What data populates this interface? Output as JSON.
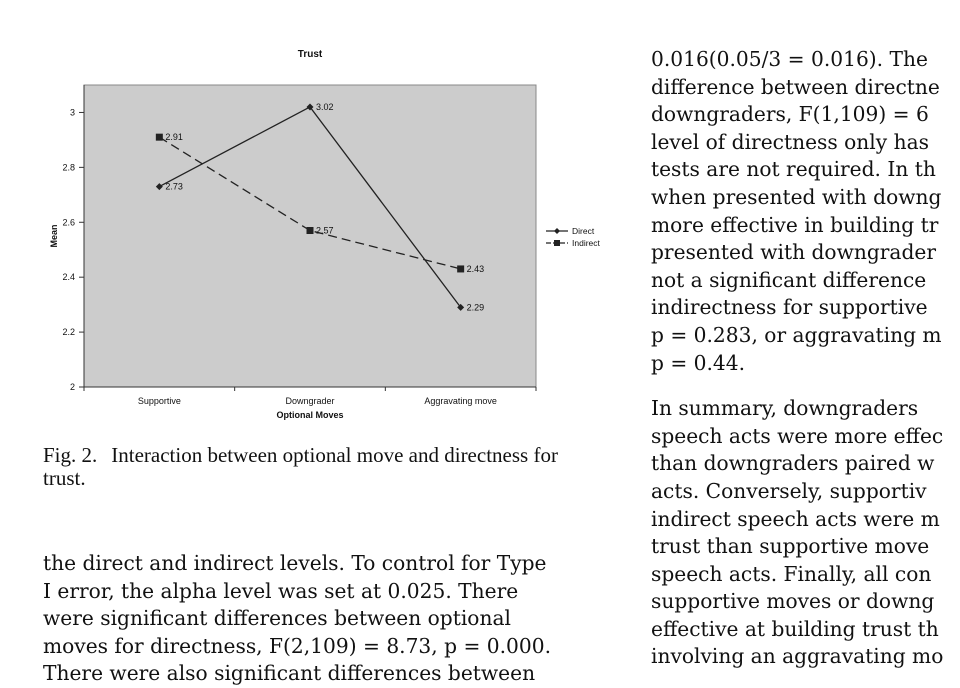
{
  "figure": {
    "chart_data": {
      "type": "line",
      "title": "Trust",
      "xlabel": "Optional Moves",
      "ylabel": "Mean",
      "categories": [
        "Supportive",
        "Downgrader",
        "Aggravating move"
      ],
      "series": [
        {
          "name": "Direct",
          "values": [
            2.73,
            3.02,
            2.29
          ],
          "labels": [
            "2.73",
            "3.02",
            "2.29"
          ],
          "line_style": "solid",
          "marker": "diamond"
        },
        {
          "name": "Indirect",
          "values": [
            2.91,
            2.57,
            2.43
          ],
          "labels": [
            "2.91",
            "2.57",
            "2.43"
          ],
          "line_style": "dashed",
          "marker": "square"
        }
      ],
      "ylim": [
        2,
        3.1
      ],
      "yticks": [
        "2",
        "2.2",
        "2.4",
        "2.6",
        "2.8",
        "3"
      ],
      "legend": "right",
      "grid": false,
      "plot_background": "#cccccc",
      "line_color": "#222222"
    }
  },
  "caption": {
    "label": "Fig. 2.",
    "text": "Interaction between optional move and directness for trust."
  },
  "left_column": {
    "lines": [
      "the direct and indirect levels. To control for Type",
      "I error, the alpha level was set at 0.025. There",
      "were significant differences between optional",
      "moves for directness, F(2,109) = 8.73, p = 0.000.",
      "There were also significant differences between"
    ]
  },
  "right_column": {
    "paragraph1": [
      "0.016(0.05/3 = 0.016). The",
      "difference between directne",
      "downgraders, F(1,109) = 6",
      "level of directness only has",
      "tests are not required. In th",
      "when presented with downg",
      "more effective in building tr",
      "presented with downgrader",
      "not a significant difference",
      "indirectness for supportive",
      "p = 0.283, or aggravating m",
      "p = 0.44."
    ],
    "paragraph2": [
      "In summary, downgraders",
      "speech acts were more effec",
      "than downgraders paired w",
      "acts. Conversely, supportiv",
      "indirect speech acts were m",
      "trust than supportive move",
      "speech acts. Finally, all con",
      "supportive moves or downg",
      "effective at building trust th",
      "involving an aggravating mo"
    ]
  }
}
